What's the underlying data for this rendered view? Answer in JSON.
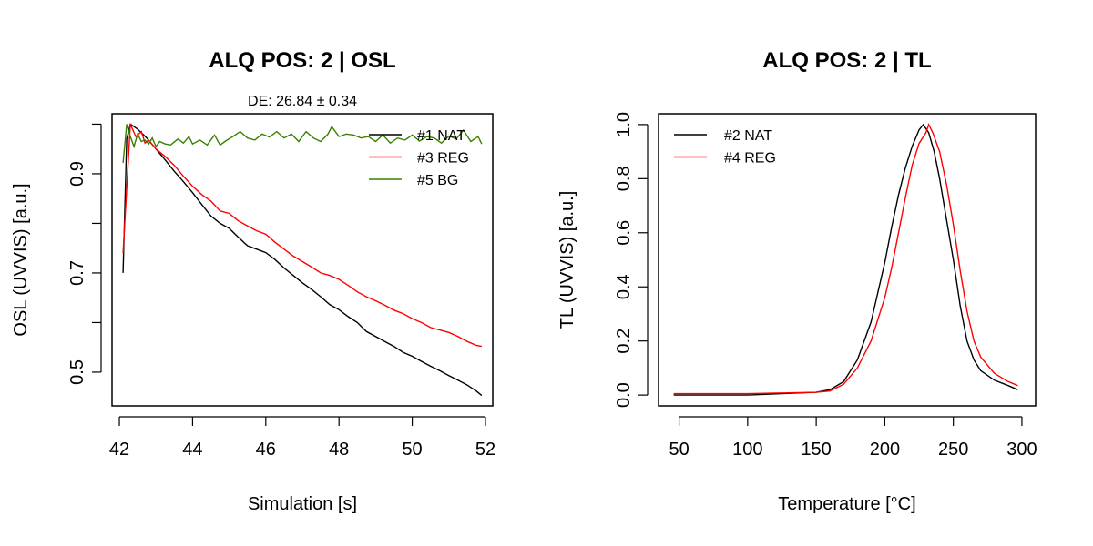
{
  "chart_data": [
    {
      "type": "line",
      "title": "ALQ POS: 2 | OSL",
      "subtitle": "DE: 26.84 ± 0.34",
      "xlabel": "Simulation [s]",
      "ylabel": "OSL (UVVIS) [a.u.]",
      "xlim": [
        41.8,
        52.2
      ],
      "ylim": [
        0.432,
        1.021
      ],
      "xticks": [
        42,
        44,
        46,
        48,
        50,
        52
      ],
      "yticks": [
        0.5,
        0.6,
        0.7,
        0.8,
        0.9,
        1.0
      ],
      "ytick_labels": [
        "0.5",
        "0.7",
        "0.9"
      ],
      "ytick_label_values": [
        0.5,
        0.7,
        0.9
      ],
      "grid": false,
      "legend_position": "top-right",
      "series": [
        {
          "name": "#1 NAT",
          "color": "#000000",
          "x": [
            42.1,
            42.2,
            42.3,
            42.5,
            42.75,
            43,
            43.25,
            43.5,
            43.75,
            44,
            44.25,
            44.5,
            44.75,
            45,
            45.25,
            45.5,
            45.75,
            46,
            46.25,
            46.5,
            46.75,
            47,
            47.25,
            47.5,
            47.75,
            48,
            48.25,
            48.5,
            48.75,
            49,
            49.25,
            49.5,
            49.75,
            50,
            50.25,
            50.5,
            50.75,
            51,
            51.25,
            51.5,
            51.75,
            51.9
          ],
          "y": [
            0.7,
            0.97,
            1.0,
            0.99,
            0.972,
            0.95,
            0.928,
            0.905,
            0.884,
            0.862,
            0.838,
            0.815,
            0.8,
            0.79,
            0.772,
            0.755,
            0.748,
            0.741,
            0.727,
            0.71,
            0.695,
            0.68,
            0.667,
            0.652,
            0.636,
            0.626,
            0.612,
            0.6,
            0.582,
            0.572,
            0.562,
            0.552,
            0.54,
            0.532,
            0.522,
            0.512,
            0.503,
            0.493,
            0.484,
            0.474,
            0.462,
            0.453
          ]
        },
        {
          "name": "#3 REG",
          "color": "#ff0000",
          "x": [
            42.1,
            42.3,
            42.45,
            42.6,
            42.7,
            42.8,
            43,
            43.25,
            43.5,
            43.75,
            44,
            44.25,
            44.5,
            44.75,
            45,
            45.25,
            45.5,
            45.75,
            46,
            46.25,
            46.5,
            46.75,
            47,
            47.25,
            47.5,
            47.75,
            48,
            48.25,
            48.5,
            48.75,
            49,
            49.25,
            49.5,
            49.75,
            50,
            50.25,
            50.5,
            50.75,
            51,
            51.25,
            51.5,
            51.75,
            51.9
          ],
          "y": [
            0.74,
            1.0,
            0.975,
            0.985,
            0.962,
            0.968,
            0.95,
            0.935,
            0.917,
            0.895,
            0.875,
            0.858,
            0.845,
            0.825,
            0.82,
            0.805,
            0.795,
            0.785,
            0.778,
            0.762,
            0.748,
            0.734,
            0.723,
            0.712,
            0.7,
            0.695,
            0.687,
            0.675,
            0.662,
            0.652,
            0.644,
            0.635,
            0.625,
            0.618,
            0.608,
            0.6,
            0.59,
            0.585,
            0.58,
            0.572,
            0.562,
            0.554,
            0.552
          ]
        },
        {
          "name": "#5 BG",
          "color": "#3a8000",
          "x": [
            42.1,
            42.2,
            42.3,
            42.4,
            42.5,
            42.6,
            42.7,
            42.8,
            42.9,
            43,
            43.1,
            43.25,
            43.4,
            43.6,
            43.75,
            43.9,
            44,
            44.2,
            44.4,
            44.6,
            44.75,
            44.9,
            45.1,
            45.3,
            45.5,
            45.7,
            45.9,
            46.1,
            46.3,
            46.5,
            46.7,
            46.9,
            47.1,
            47.3,
            47.5,
            47.7,
            47.8,
            48,
            48.2,
            48.4,
            48.6,
            48.8,
            49,
            49.2,
            49.4,
            49.6,
            49.8,
            50,
            50.2,
            50.4,
            50.6,
            50.8,
            51,
            51.2,
            51.4,
            51.6,
            51.8,
            51.9
          ],
          "y": [
            0.922,
            1.0,
            0.975,
            0.955,
            0.98,
            0.965,
            0.968,
            0.96,
            0.972,
            0.955,
            0.965,
            0.96,
            0.958,
            0.97,
            0.962,
            0.975,
            0.96,
            0.968,
            0.958,
            0.978,
            0.958,
            0.966,
            0.975,
            0.985,
            0.972,
            0.968,
            0.98,
            0.974,
            0.985,
            0.972,
            0.98,
            0.965,
            0.985,
            0.972,
            0.965,
            0.98,
            0.995,
            0.975,
            0.98,
            0.978,
            0.972,
            0.975,
            0.965,
            0.978,
            0.962,
            0.972,
            0.968,
            0.978,
            0.966,
            0.975,
            0.972,
            0.962,
            0.976,
            0.97,
            0.988,
            0.965,
            0.975,
            0.96
          ]
        }
      ]
    },
    {
      "type": "line",
      "title": "ALQ POS: 2 | TL",
      "xlabel": "Temperature [°C]",
      "ylabel": "TL (UVVIS) [a.u.]",
      "xlim": [
        35,
        310
      ],
      "ylim": [
        -0.04,
        1.04
      ],
      "xticks": [
        50,
        100,
        150,
        200,
        250,
        300
      ],
      "yticks": [
        0.0,
        0.2,
        0.4,
        0.6,
        0.8,
        1.0
      ],
      "ytick_labels": [
        "0.0",
        "0.2",
        "0.4",
        "0.6",
        "0.8",
        "1.0"
      ],
      "ytick_label_values": [
        0.0,
        0.2,
        0.4,
        0.6,
        0.8,
        1.0
      ],
      "grid": false,
      "legend_position": "top-left",
      "series": [
        {
          "name": "#2 NAT",
          "color": "#000000",
          "x": [
            46,
            100,
            150,
            160,
            170,
            180,
            190,
            200,
            205,
            210,
            215,
            220,
            225,
            228,
            232,
            236,
            240,
            245,
            250,
            255,
            260,
            265,
            270,
            280,
            290,
            297
          ],
          "y": [
            0.0,
            0.0,
            0.01,
            0.02,
            0.05,
            0.13,
            0.27,
            0.49,
            0.62,
            0.74,
            0.84,
            0.92,
            0.98,
            1.0,
            0.97,
            0.9,
            0.8,
            0.65,
            0.5,
            0.33,
            0.2,
            0.13,
            0.09,
            0.055,
            0.035,
            0.02
          ]
        },
        {
          "name": "#4 REG",
          "color": "#ff0000",
          "x": [
            46,
            100,
            150,
            160,
            170,
            180,
            190,
            200,
            205,
            210,
            215,
            220,
            225,
            230,
            232,
            235,
            240,
            245,
            250,
            255,
            260,
            265,
            270,
            280,
            290,
            297
          ],
          "y": [
            0.005,
            0.005,
            0.01,
            0.015,
            0.04,
            0.1,
            0.2,
            0.36,
            0.47,
            0.6,
            0.73,
            0.85,
            0.93,
            0.97,
            1.0,
            0.97,
            0.9,
            0.78,
            0.63,
            0.46,
            0.31,
            0.2,
            0.14,
            0.08,
            0.05,
            0.035
          ]
        }
      ]
    }
  ]
}
